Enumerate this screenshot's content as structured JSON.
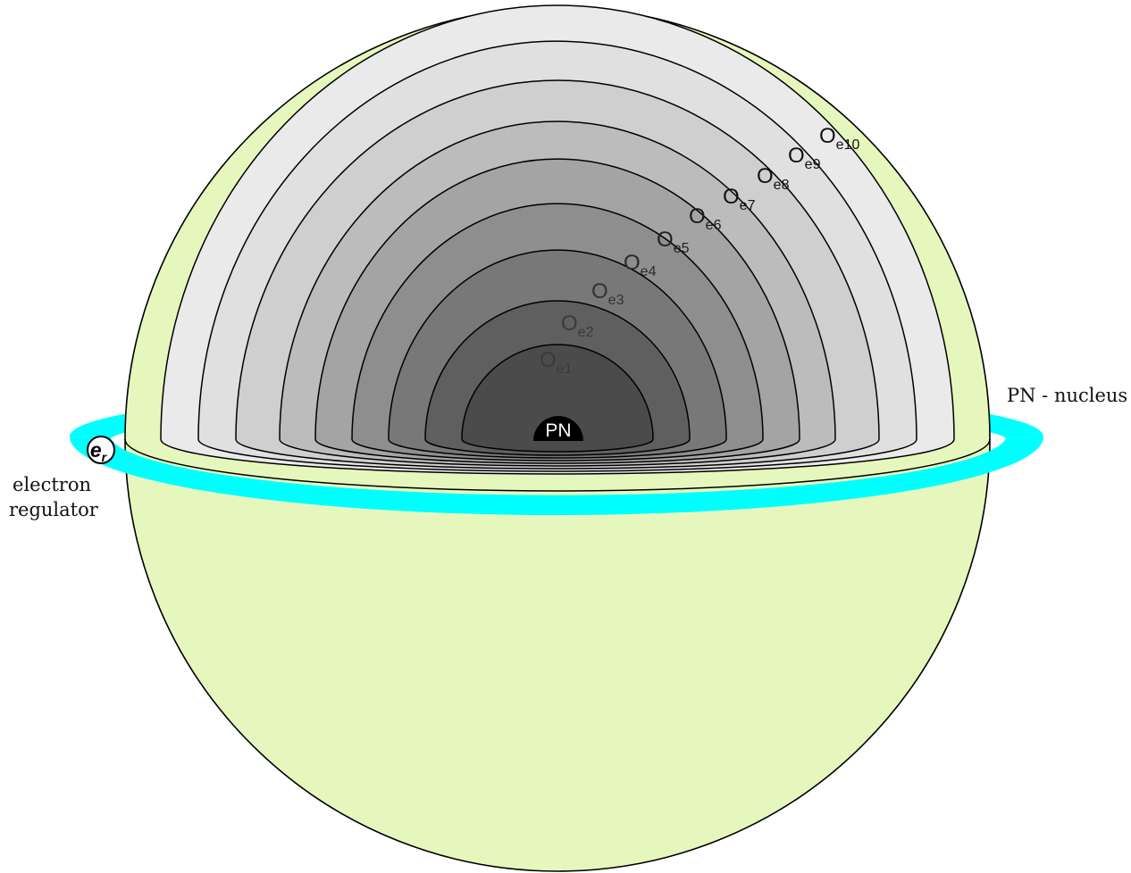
{
  "diagram": {
    "nucleus_label": "PN",
    "nucleus_legend": "PN - nucleus",
    "regulator_symbol": "e",
    "regulator_subscript": "r",
    "regulator_legend_line1": "electron",
    "regulator_legend_line2": "regulator",
    "shells": [
      {
        "main": "O",
        "sub": "e1",
        "fill": "#4b4b4b",
        "text_color": "#3a3a3a"
      },
      {
        "main": "O",
        "sub": "e2",
        "fill": "#5f5f5f",
        "text_color": "#3a3a3a"
      },
      {
        "main": "O",
        "sub": "e3",
        "fill": "#787878",
        "text_color": "#333333"
      },
      {
        "main": "O",
        "sub": "e4",
        "fill": "#8e8e8e",
        "text_color": "#2a2a2a"
      },
      {
        "main": "O",
        "sub": "e5",
        "fill": "#a4a4a4",
        "text_color": "#222222"
      },
      {
        "main": "O",
        "sub": "e6",
        "fill": "#bcbcbc",
        "text_color": "#1a1a1a"
      },
      {
        "main": "O",
        "sub": "e7",
        "fill": "#cfcfcf",
        "text_color": "#111111"
      },
      {
        "main": "O",
        "sub": "e8",
        "fill": "#e0e0e0",
        "text_color": "#111111"
      },
      {
        "main": "O",
        "sub": "e9",
        "fill": "#eaeaea",
        "text_color": "#111111"
      },
      {
        "main": "O",
        "sub": "e10",
        "fill": "#f3f3f3",
        "text_color": "#111111"
      }
    ],
    "colors": {
      "sphere": "#e6f7bd",
      "ring": "#00ffff",
      "nucleus": "#000000",
      "outline": "#000000"
    }
  }
}
